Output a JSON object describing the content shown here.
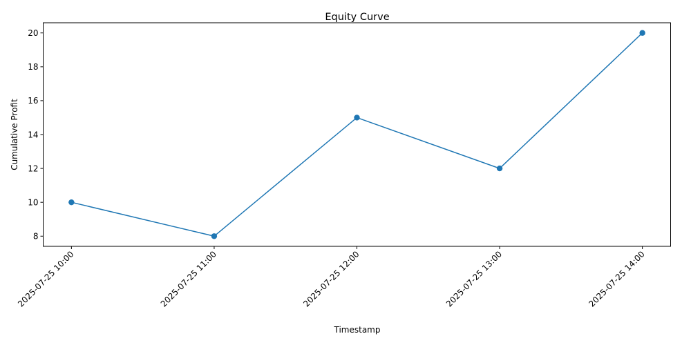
{
  "chart_data": {
    "type": "line",
    "title": "Equity Curve",
    "xlabel": "Timestamp",
    "ylabel": "Cumulative Profit",
    "categories": [
      "2025-07-25 10:00",
      "2025-07-25 11:00",
      "2025-07-25 12:00",
      "2025-07-25 13:00",
      "2025-07-25 14:00"
    ],
    "series": [
      {
        "values": [
          10,
          8,
          15,
          12,
          20
        ],
        "color": "#1f77b4",
        "marker": "circle"
      }
    ],
    "yticks": [
      8,
      10,
      12,
      14,
      16,
      18,
      20
    ],
    "ylim": [
      7.4,
      20.6
    ],
    "grid": false,
    "legend": "none",
    "xtick_rotation": 45
  }
}
